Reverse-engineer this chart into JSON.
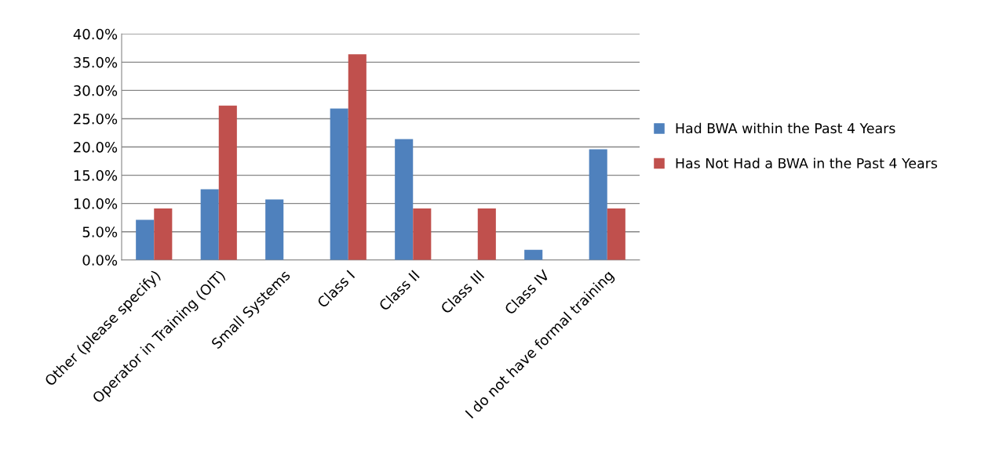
{
  "chart_data": {
    "type": "bar",
    "categories": [
      "Other (please specify)",
      "Operator in Training (OIT)",
      "Small Systems",
      "Class I",
      "Class II",
      "Class III",
      "Class IV",
      "I do not have formal training"
    ],
    "series": [
      {
        "name": "Had BWA within the Past 4 Years",
        "color": "#4f81bd",
        "values": [
          7.1,
          12.5,
          10.7,
          26.8,
          21.4,
          0,
          1.8,
          19.6
        ]
      },
      {
        "name": "Has Not Had a BWA in the Past 4 Years",
        "color": "#c0504d",
        "values": [
          9.1,
          27.3,
          0,
          36.4,
          9.1,
          9.1,
          0,
          9.1
        ]
      }
    ],
    "ylim": [
      0,
      40
    ],
    "yticks": [
      {
        "value": 0,
        "label": "0.0%"
      },
      {
        "value": 5,
        "label": "5.0%"
      },
      {
        "value": 10,
        "label": "10.0%"
      },
      {
        "value": 15,
        "label": "15.0%"
      },
      {
        "value": 20,
        "label": "20.0%"
      },
      {
        "value": 25,
        "label": "25.0%"
      },
      {
        "value": 30,
        "label": "30.0%"
      },
      {
        "value": 35,
        "label": "35.0%"
      },
      {
        "value": 40,
        "label": "40.0%"
      }
    ],
    "grid": "y",
    "legend": "right"
  }
}
